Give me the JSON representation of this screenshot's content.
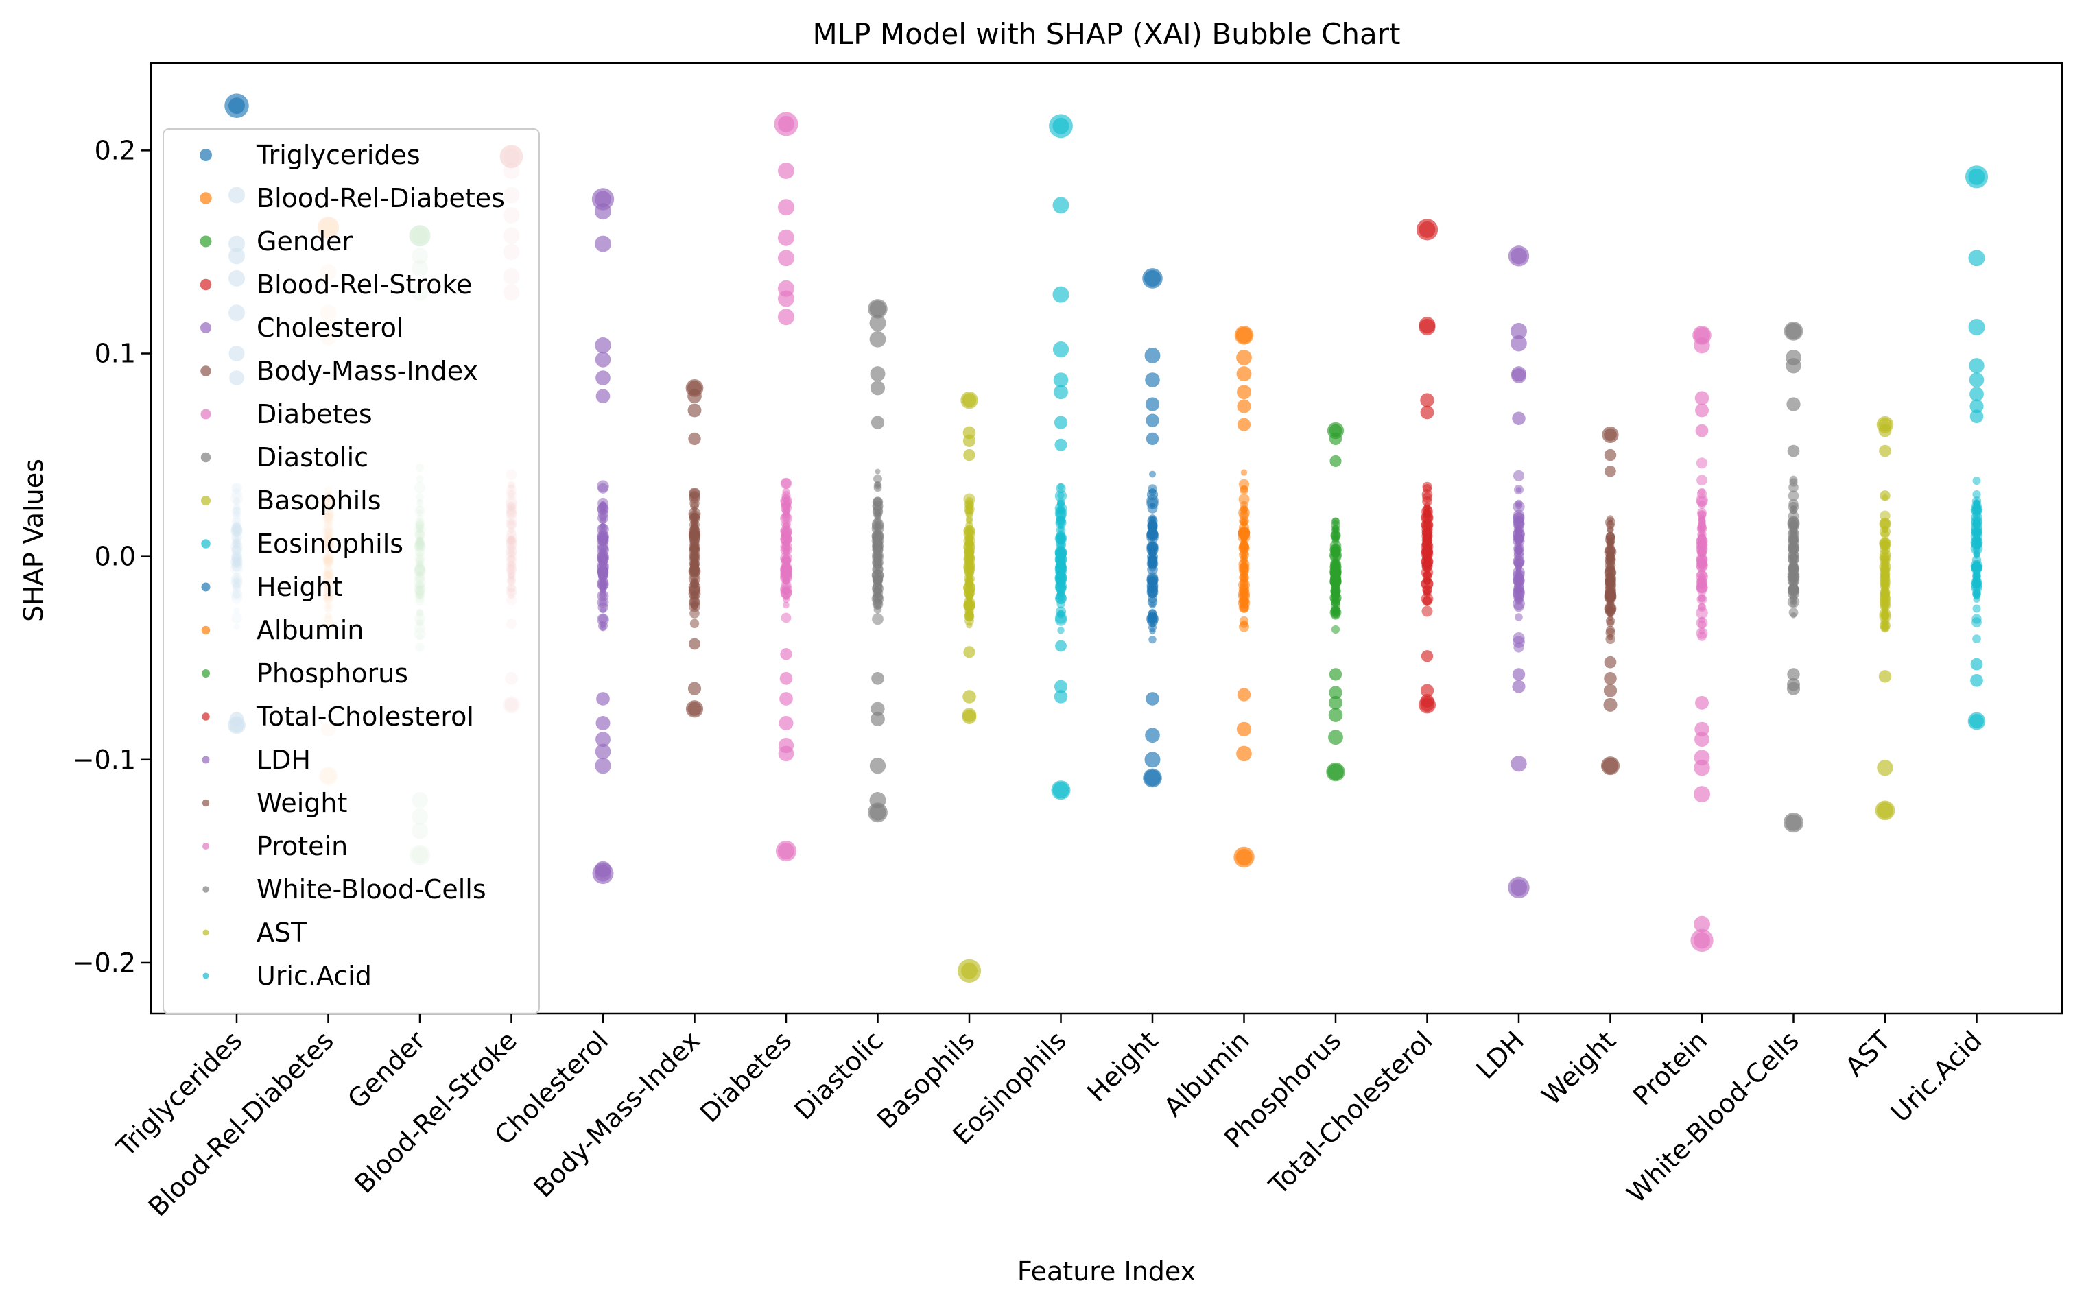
{
  "chart_data": {
    "type": "scatter",
    "title": "MLP Model with SHAP (XAI) Bubble Chart",
    "xlabel": "Feature Index",
    "ylabel": "SHAP Values",
    "ylim": [
      -0.225,
      0.243
    ],
    "yticks": [
      {
        "value": -0.2,
        "label": "−0.2"
      },
      {
        "value": -0.1,
        "label": "−0.1"
      },
      {
        "value": 0.0,
        "label": "0.0"
      },
      {
        "value": 0.1,
        "label": "0.1"
      },
      {
        "value": 0.2,
        "label": "0.2"
      }
    ],
    "grid": false,
    "legend_position": "upper-left",
    "categories": [
      "Triglycerides",
      "Blood-Rel-Diabetes",
      "Gender",
      "Blood-Rel-Stroke",
      "Cholesterol",
      "Body-Mass-Index",
      "Diabetes",
      "Diastolic",
      "Basophils",
      "Eosinophils",
      "Height",
      "Albumin",
      "Phosphorus",
      "Total-Cholesterol",
      "LDH",
      "Weight",
      "Protein",
      "White-Blood-Cells",
      "AST",
      "Uric.Acid"
    ],
    "series": [
      {
        "name": "Triglycerides",
        "color": "#1f77b4",
        "min": -0.083,
        "max": 0.222,
        "extremes": [
          0.222,
          0.178,
          0.154,
          0.148,
          0.137,
          0.12,
          0.1,
          0.088,
          -0.083,
          -0.08
        ]
      },
      {
        "name": "Blood-Rel-Diabetes",
        "color": "#ff7f0e",
        "min": -0.108,
        "max": 0.162,
        "extremes": [
          0.162,
          0.14,
          0.12,
          0.108,
          -0.085,
          -0.108
        ]
      },
      {
        "name": "Gender",
        "color": "#2ca02c",
        "min": -0.147,
        "max": 0.158,
        "extremes": [
          0.158,
          0.148,
          0.142,
          0.13,
          -0.12,
          -0.128,
          -0.135,
          -0.147
        ]
      },
      {
        "name": "Blood-Rel-Stroke",
        "color": "#d62728",
        "min": -0.073,
        "max": 0.197,
        "extremes": [
          0.197,
          0.19,
          0.178,
          0.168,
          0.158,
          0.15,
          0.138,
          0.13,
          -0.06,
          -0.073
        ]
      },
      {
        "name": "Cholesterol",
        "color": "#9467bd",
        "min": -0.156,
        "max": 0.176,
        "extremes": [
          0.176,
          0.17,
          0.154,
          0.104,
          0.097,
          0.088,
          0.079,
          -0.07,
          -0.082,
          -0.09,
          -0.096,
          -0.103,
          -0.154,
          -0.156
        ]
      },
      {
        "name": "Body-Mass-Index",
        "color": "#8c564b",
        "min": -0.075,
        "max": 0.083,
        "extremes": [
          0.083,
          0.079,
          0.072,
          0.058,
          -0.043,
          -0.065,
          -0.075
        ]
      },
      {
        "name": "Diabetes",
        "color": "#e377c2",
        "min": -0.145,
        "max": 0.213,
        "extremes": [
          0.213,
          0.19,
          0.172,
          0.157,
          0.147,
          0.132,
          0.127,
          0.118,
          -0.048,
          -0.06,
          -0.07,
          -0.082,
          -0.093,
          -0.097,
          -0.145
        ]
      },
      {
        "name": "Diastolic",
        "color": "#7f7f7f",
        "min": -0.126,
        "max": 0.122,
        "extremes": [
          0.122,
          0.115,
          0.107,
          0.09,
          0.083,
          0.066,
          -0.06,
          -0.075,
          -0.08,
          -0.103,
          -0.12,
          -0.126
        ]
      },
      {
        "name": "Basophils",
        "color": "#bcbd22",
        "min": -0.204,
        "max": 0.077,
        "extremes": [
          0.077,
          0.061,
          0.057,
          0.05,
          -0.047,
          -0.069,
          -0.078,
          -0.079,
          -0.204
        ]
      },
      {
        "name": "Eosinophils",
        "color": "#17becf",
        "min": -0.115,
        "max": 0.212,
        "extremes": [
          0.212,
          0.173,
          0.129,
          0.102,
          0.087,
          0.081,
          0.066,
          0.055,
          -0.044,
          -0.064,
          -0.069,
          -0.115
        ]
      },
      {
        "name": "Height",
        "color": "#1f77b4",
        "min": -0.109,
        "max": 0.137,
        "extremes": [
          0.137,
          0.099,
          0.087,
          0.075,
          0.067,
          0.058,
          -0.07,
          -0.088,
          -0.1,
          -0.109
        ]
      },
      {
        "name": "Albumin",
        "color": "#ff7f0e",
        "min": -0.148,
        "max": 0.109,
        "extremes": [
          0.109,
          0.098,
          0.09,
          0.081,
          0.074,
          0.065,
          -0.068,
          -0.085,
          -0.097,
          -0.148
        ]
      },
      {
        "name": "Phosphorus",
        "color": "#2ca02c",
        "min": -0.106,
        "max": 0.062,
        "extremes": [
          0.062,
          0.058,
          0.047,
          -0.058,
          -0.067,
          -0.072,
          -0.078,
          -0.089,
          -0.106
        ]
      },
      {
        "name": "Total-Cholesterol",
        "color": "#d62728",
        "min": -0.073,
        "max": 0.161,
        "extremes": [
          0.161,
          0.114,
          0.113,
          0.077,
          0.071,
          -0.049,
          -0.066,
          -0.071,
          -0.073
        ]
      },
      {
        "name": "LDH",
        "color": "#9467bd",
        "min": -0.163,
        "max": 0.148,
        "extremes": [
          0.148,
          0.111,
          0.105,
          0.09,
          0.089,
          0.068,
          -0.058,
          -0.064,
          -0.102,
          -0.163
        ]
      },
      {
        "name": "Weight",
        "color": "#8c564b",
        "min": -0.103,
        "max": 0.06,
        "extremes": [
          0.06,
          0.05,
          0.042,
          -0.052,
          -0.06,
          -0.066,
          -0.073,
          -0.103
        ]
      },
      {
        "name": "Protein",
        "color": "#e377c2",
        "min": -0.189,
        "max": 0.109,
        "extremes": [
          0.109,
          0.104,
          0.078,
          0.072,
          0.062,
          -0.072,
          -0.085,
          -0.09,
          -0.099,
          -0.104,
          -0.117,
          -0.181,
          -0.189
        ]
      },
      {
        "name": "White-Blood-Cells",
        "color": "#7f7f7f",
        "min": -0.131,
        "max": 0.111,
        "extremes": [
          0.111,
          0.098,
          0.094,
          0.075,
          0.052,
          -0.058,
          -0.063,
          -0.065,
          -0.131
        ]
      },
      {
        "name": "AST",
        "color": "#bcbd22",
        "min": -0.125,
        "max": 0.065,
        "extremes": [
          0.065,
          0.062,
          0.052,
          0.03,
          -0.034,
          -0.059,
          -0.104,
          -0.125
        ]
      },
      {
        "name": "Uric.Acid",
        "color": "#17becf",
        "min": -0.081,
        "max": 0.187,
        "extremes": [
          0.187,
          0.147,
          0.113,
          0.094,
          0.087,
          0.08,
          0.074,
          0.069,
          -0.053,
          -0.061,
          -0.081
        ]
      }
    ]
  }
}
